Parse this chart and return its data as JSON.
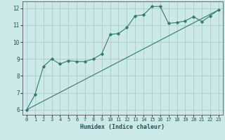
{
  "xlabel": "Humidex (Indice chaleur)",
  "ylabel": "",
  "bg_color": "#cde8e8",
  "grid_color": "#aacccc",
  "line_color": "#2e7d6e",
  "xlim": [
    -0.5,
    23.5
  ],
  "ylim": [
    5.7,
    12.4
  ],
  "xticks": [
    0,
    1,
    2,
    3,
    4,
    5,
    6,
    7,
    8,
    9,
    10,
    11,
    12,
    13,
    14,
    15,
    16,
    17,
    18,
    19,
    20,
    21,
    22,
    23
  ],
  "yticks": [
    6,
    7,
    8,
    9,
    10,
    11,
    12
  ],
  "curve1_x": [
    0,
    1,
    2,
    3,
    4,
    5,
    6,
    7,
    8,
    9,
    10,
    11,
    12,
    13,
    14,
    15,
    16,
    17,
    18,
    19,
    20,
    21,
    22,
    23
  ],
  "curve1_y": [
    6.0,
    6.9,
    8.55,
    9.0,
    8.7,
    8.9,
    8.85,
    8.85,
    9.0,
    9.3,
    10.45,
    10.5,
    10.85,
    11.55,
    11.6,
    12.1,
    12.1,
    11.1,
    11.15,
    11.25,
    11.5,
    11.2,
    11.55,
    11.9
  ],
  "curve2_x": [
    0,
    23
  ],
  "curve2_y": [
    6.0,
    11.9
  ],
  "marker": "D",
  "marker_size": 1.8,
  "line_width": 0.8,
  "tick_fontsize": 5.0,
  "xlabel_fontsize": 6.0
}
